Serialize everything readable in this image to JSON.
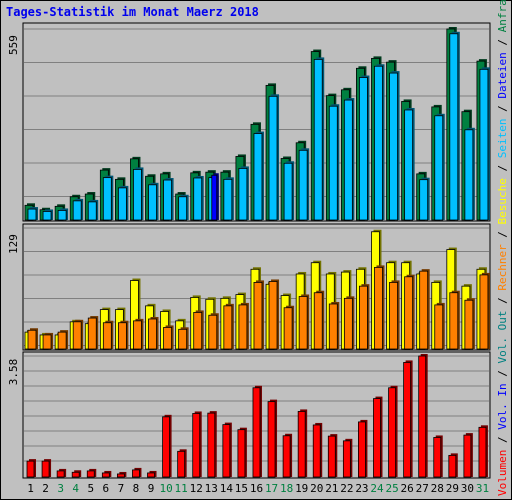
{
  "title": "Tages-Statistik im Monat Maerz 2018",
  "colors": {
    "anfragen": "#008040",
    "dateien": "#00c0ff",
    "seiten": "#0000ff",
    "besuche": "#ffff00",
    "rechner": "#ff8000",
    "volumen": "#ff0000",
    "weekend_label": "#008040",
    "weekday_label": "#000000"
  },
  "right_legend": [
    {
      "text": "Volumen",
      "color": "#ff0000"
    },
    {
      "text": " / ",
      "color": "#000000"
    },
    {
      "text": "Vol. In",
      "color": "#0000ff"
    },
    {
      "text": " / ",
      "color": "#000000"
    },
    {
      "text": "Vol. Out",
      "color": "#008080"
    },
    {
      "text": " / ",
      "color": "#000000"
    },
    {
      "text": "Rechner",
      "color": "#ff8000"
    },
    {
      "text": " / ",
      "color": "#000000"
    },
    {
      "text": "Besuche",
      "color": "#ffff00"
    },
    {
      "text": " / ",
      "color": "#000000"
    },
    {
      "text": "Seiten",
      "color": "#00c0ff"
    },
    {
      "text": " / ",
      "color": "#000000"
    },
    {
      "text": "Dateien",
      "color": "#0000ff"
    },
    {
      "text": " / ",
      "color": "#000000"
    },
    {
      "text": "Anfragen",
      "color": "#008040"
    }
  ],
  "chart_data": [
    {
      "type": "bar",
      "name": "hits",
      "ymax_label": "559",
      "ylim": [
        0,
        559
      ],
      "categories": [
        "1",
        "2",
        "3",
        "4",
        "5",
        "6",
        "7",
        "8",
        "9",
        "10",
        "11",
        "12",
        "13",
        "14",
        "15",
        "16",
        "17",
        "18",
        "19",
        "20",
        "21",
        "22",
        "23",
        "24",
        "25",
        "26",
        "27",
        "28",
        "29",
        "30",
        "31"
      ],
      "weekend_days": [
        3,
        4,
        10,
        11,
        17,
        18,
        24,
        25,
        31
      ],
      "series": [
        {
          "name": "Anfragen",
          "values": [
            43,
            30,
            40,
            68,
            76,
            146,
            119,
            179,
            128,
            135,
            76,
            138,
            140,
            140,
            186,
            280,
            394,
            180,
            226,
            493,
            364,
            381,
            444,
            473,
            462,
            347,
            135,
            331,
            559,
            317,
            465
          ]
        },
        {
          "name": "Dateien",
          "values": [
            32,
            25,
            28,
            56,
            53,
            124,
            94,
            148,
            103,
            117,
            68,
            123,
            124,
            119,
            151,
            253,
            362,
            166,
            204,
            470,
            333,
            351,
            417,
            450,
            430,
            322,
            118,
            305,
            545,
            264,
            441
          ]
        },
        {
          "name": "Seiten",
          "values": [
            0,
            0,
            0,
            0,
            0,
            0,
            0,
            0,
            0,
            0,
            0,
            0,
            131,
            0,
            0,
            0,
            0,
            0,
            0,
            0,
            0,
            0,
            0,
            0,
            0,
            0,
            0,
            0,
            0,
            0,
            0
          ]
        }
      ]
    },
    {
      "type": "bar",
      "name": "visits",
      "ymax_label": "129",
      "ylim": [
        0,
        129
      ],
      "categories": [
        "1",
        "2",
        "3",
        "4",
        "5",
        "6",
        "7",
        "8",
        "9",
        "10",
        "11",
        "12",
        "13",
        "14",
        "15",
        "16",
        "17",
        "18",
        "19",
        "20",
        "21",
        "22",
        "23",
        "24",
        "25",
        "26",
        "27",
        "28",
        "29",
        "30",
        "31"
      ],
      "series": [
        {
          "name": "Besuche",
          "values": [
            18,
            15,
            15,
            29,
            27,
            42,
            42,
            73,
            46,
            40,
            30,
            55,
            53,
            54,
            58,
            85,
            69,
            57,
            80,
            92,
            80,
            82,
            85,
            125,
            92,
            92,
            80,
            71,
            106,
            67,
            85
          ]
        },
        {
          "name": "Rechner",
          "values": [
            20,
            15,
            18,
            29,
            33,
            28,
            28,
            30,
            32,
            23,
            21,
            39,
            36,
            46,
            47,
            71,
            72,
            44,
            56,
            60,
            48,
            54,
            67,
            87,
            71,
            77,
            83,
            47,
            60,
            52,
            79
          ]
        }
      ]
    },
    {
      "type": "bar",
      "name": "volume",
      "ymax_label": "3.58",
      "ylim": [
        0,
        3.58
      ],
      "categories": [
        "1",
        "2",
        "3",
        "4",
        "5",
        "6",
        "7",
        "8",
        "9",
        "10",
        "11",
        "12",
        "13",
        "14",
        "15",
        "16",
        "17",
        "18",
        "19",
        "20",
        "21",
        "22",
        "23",
        "24",
        "25",
        "26",
        "27",
        "28",
        "29",
        "30",
        "31"
      ],
      "series": [
        {
          "name": "Volumen",
          "values": [
            0.47,
            0.47,
            0.18,
            0.14,
            0.18,
            0.12,
            0.09,
            0.21,
            0.12,
            1.78,
            0.76,
            1.88,
            1.89,
            1.55,
            1.4,
            2.64,
            2.23,
            1.22,
            1.94,
            1.54,
            1.21,
            1.07,
            1.63,
            2.32,
            2.64,
            3.39,
            3.58,
            1.17,
            0.64,
            1.24,
            1.47
          ]
        }
      ]
    }
  ]
}
